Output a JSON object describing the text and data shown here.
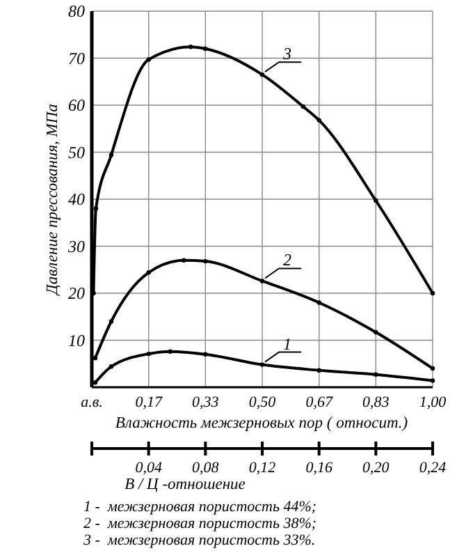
{
  "chart_data": {
    "type": "line",
    "xlabel": "Влажность межзерновых пор ( относит.)",
    "ylabel": "Давление прессования, МПа",
    "x2label": "В / Ц -отношение",
    "xlim": [
      0,
      1
    ],
    "xticks": [
      {
        "value": 0,
        "label": "а.в."
      },
      {
        "value": 0.1667,
        "label": "0,17"
      },
      {
        "value": 0.3333,
        "label": "0,33"
      },
      {
        "value": 0.5,
        "label": "0,50"
      },
      {
        "value": 0.6667,
        "label": "0,67"
      },
      {
        "value": 0.8333,
        "label": "0,83"
      },
      {
        "value": 1,
        "label": "1,00"
      }
    ],
    "x2lim": [
      0,
      0.24
    ],
    "x2ticks": [
      {
        "value": 0,
        "label": null
      },
      {
        "value": 0.04,
        "label": "0,04"
      },
      {
        "value": 0.08,
        "label": "0,08"
      },
      {
        "value": 0.12,
        "label": "0,12"
      },
      {
        "value": 0.16,
        "label": "0,16"
      },
      {
        "value": 0.2,
        "label": "0,20"
      },
      {
        "value": 0.24,
        "label": "0,24"
      }
    ],
    "ylim": [
      0,
      80
    ],
    "yticks": [
      {
        "value": 0,
        "label": null
      },
      10,
      20,
      30,
      40,
      50,
      60,
      70,
      80
    ],
    "grid": true,
    "marker": "circle",
    "line_style": "solid",
    "series": [
      {
        "name": "1",
        "color": "#000000",
        "x": [
          0.01,
          0.057,
          0.1667,
          0.23,
          0.3333,
          0.5,
          0.6667,
          0.8333,
          1
        ],
        "values": [
          1,
          4.4,
          7.1,
          7.6,
          7,
          4.8,
          3.6,
          2.7,
          1.4
        ]
      },
      {
        "name": "2",
        "color": "#000000",
        "x": [
          0.01,
          0.057,
          0.1667,
          0.27,
          0.3333,
          0.5,
          0.6667,
          0.8333,
          1
        ],
        "values": [
          6.2,
          14,
          24.4,
          27,
          26.8,
          22.6,
          18,
          11.7,
          4
        ]
      },
      {
        "name": "3",
        "color": "#000000",
        "x": [
          0.005,
          0.012,
          0.057,
          0.1667,
          0.29,
          0.3333,
          0.5,
          0.62,
          0.6667,
          0.8333,
          1
        ],
        "values": [
          20,
          38,
          49.4,
          69.7,
          72.4,
          72,
          66.5,
          59.7,
          56.8,
          39.7,
          20
        ]
      }
    ],
    "annotations": [
      "1 -  межзерновая пористость 44%;",
      "2 -  межзерновая пористость 38%;",
      "3 -  межзерновая пористость 33%."
    ]
  }
}
